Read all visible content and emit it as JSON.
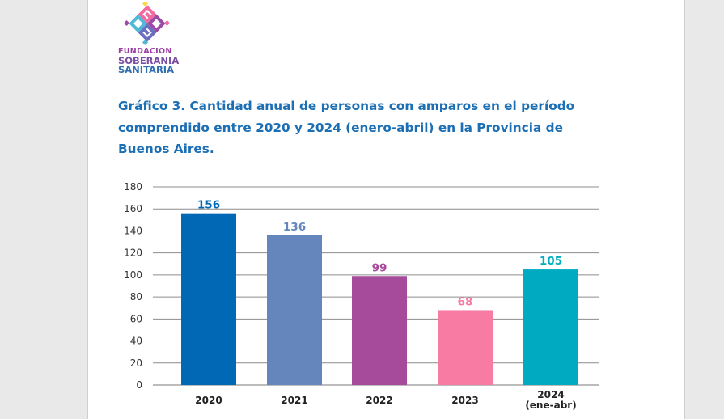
{
  "brand": {
    "line1": "FUNDACION",
    "line2": "SOBERANIA",
    "line3": "SANITARIA"
  },
  "title": "Gráfico 3. Cantidad anual de personas con amparos en el período comprendido entre 2020 y 2024 (enero-abril) en la Provincia de Buenos Aires.",
  "chart_data": {
    "type": "bar",
    "categories": [
      "2020",
      "2021",
      "2022",
      "2023",
      "2024\n(ene-abr)"
    ],
    "values": [
      156,
      136,
      99,
      68,
      105
    ],
    "data_labels": [
      "156",
      "136",
      "99",
      "68",
      "105"
    ],
    "colors": [
      "#0068b4",
      "#6585bd",
      "#a64b9c",
      "#f77ba2",
      "#00abc2"
    ],
    "ylim": [
      0,
      180
    ],
    "yticks": [
      0,
      20,
      40,
      60,
      80,
      100,
      120,
      140,
      160,
      180
    ],
    "grid": true,
    "legend": "none"
  }
}
